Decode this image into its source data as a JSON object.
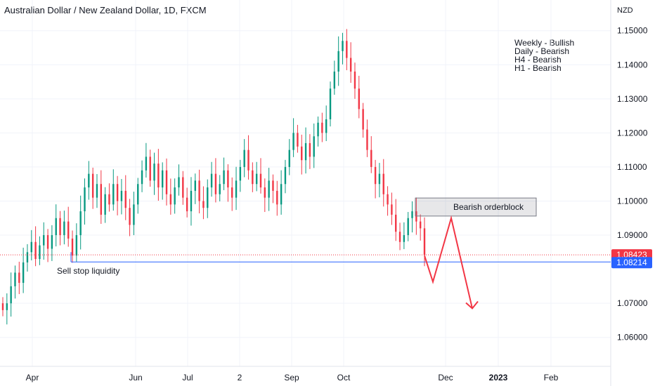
{
  "chart_data": {
    "type": "candlestick",
    "title": "Australian Dollar / New Zealand Dollar, 1D, FXCM",
    "currency_label": "NZD",
    "y_ticks": [
      "1.15000",
      "1.14000",
      "1.13000",
      "1.12000",
      "1.11000",
      "1.10000",
      "1.09000",
      "1.07000",
      "1.06000"
    ],
    "ylim": [
      1.0515,
      1.159
    ],
    "x_ticks": [
      "Apr",
      "Jun",
      "Jul",
      "2",
      "Sep",
      "Oct",
      "Dec",
      "2023",
      "Feb"
    ],
    "grid": true,
    "current_price": {
      "label": "1.08423",
      "value": 1.08423,
      "color": "#f23645"
    },
    "liquidity_level": {
      "label": "1.08214",
      "value": 1.08214,
      "color": "#2962ff"
    },
    "annotations": {
      "orderblock": {
        "label": "Bearish orderblock",
        "top": 1.1009,
        "bottom": 1.0956
      },
      "sell_stops": {
        "label": "Sell stop liquidity"
      },
      "bias": [
        "Weekly - Bullish",
        "Daily - Bearish",
        "H4 - Bearish",
        "H1 - Bearish"
      ],
      "projection": [
        1.084,
        1.0763,
        1.095,
        1.0685
      ]
    },
    "path": [
      1.068,
      1.07,
      1.075,
      1.079,
      1.076,
      1.082,
      1.085,
      1.088,
      1.083,
      1.087,
      1.09,
      1.086,
      1.09,
      1.095,
      1.09,
      1.094,
      1.089,
      1.084,
      1.09,
      1.097,
      1.104,
      1.108,
      1.101,
      1.105,
      1.096,
      1.102,
      1.099,
      1.105,
      1.1,
      1.103,
      1.098,
      1.093,
      1.099,
      1.105,
      1.109,
      1.113,
      1.106,
      1.111,
      1.104,
      1.109,
      1.102,
      1.099,
      1.104,
      1.107,
      1.101,
      1.097,
      1.103,
      1.106,
      1.1,
      1.098,
      1.104,
      1.108,
      1.102,
      1.105,
      1.109,
      1.104,
      1.101,
      1.106,
      1.11,
      1.115,
      1.109,
      1.105,
      1.108,
      1.104,
      1.101,
      1.106,
      1.103,
      1.099,
      1.105,
      1.11,
      1.115,
      1.12,
      1.116,
      1.112,
      1.117,
      1.113,
      1.119,
      1.123,
      1.12,
      1.124,
      1.133,
      1.138,
      1.144,
      1.147,
      1.142,
      1.138,
      1.133,
      1.127,
      1.121,
      1.115,
      1.11,
      1.105,
      1.108,
      1.102,
      1.099,
      1.096,
      1.091,
      1.088,
      1.09,
      1.095,
      1.097,
      1.094,
      1.092,
      1.0842
    ]
  }
}
